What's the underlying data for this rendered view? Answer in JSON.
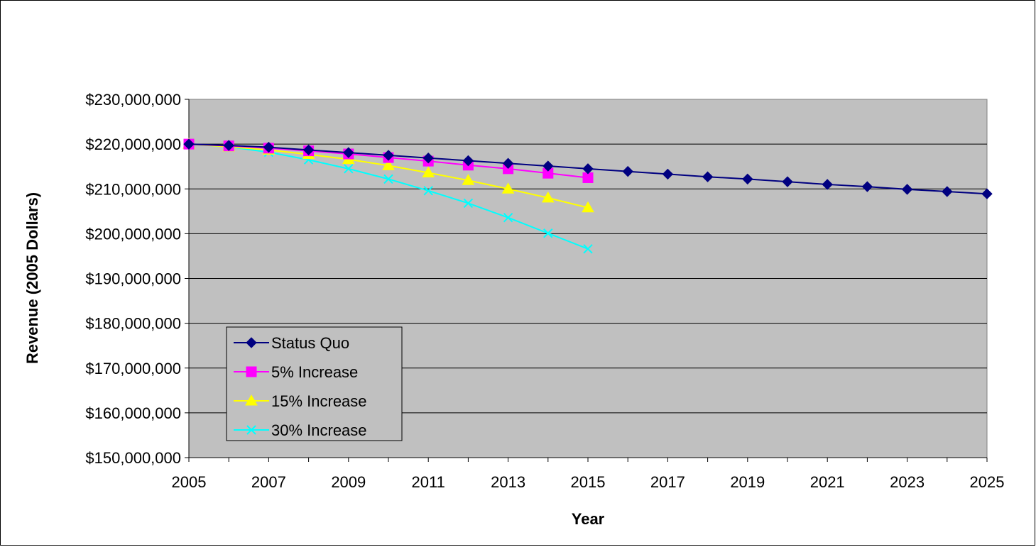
{
  "chart_data": {
    "type": "line",
    "title": "",
    "xlabel": "Year",
    "ylabel": "Revenue (2005 Dollars)",
    "ylim": [
      150000000,
      230000000
    ],
    "xlim": [
      2005,
      2025
    ],
    "y_ticks": [
      "$150,000,000",
      "$160,000,000",
      "$170,000,000",
      "$180,000,000",
      "$190,000,000",
      "$200,000,000",
      "$210,000,000",
      "$220,000,000",
      "$230,000,000"
    ],
    "x_ticks": [
      "2005",
      "2007",
      "2009",
      "2011",
      "2013",
      "2015",
      "2017",
      "2019",
      "2021",
      "2023",
      "2025"
    ],
    "grid": "horizontal",
    "legend_position": "lower-left",
    "plot_background": "#c0c0c0",
    "series": [
      {
        "name": "Status Quo",
        "color": "#000080",
        "marker": "diamond",
        "x": [
          2005,
          2006,
          2007,
          2008,
          2009,
          2010,
          2011,
          2012,
          2013,
          2014,
          2015,
          2016,
          2017,
          2018,
          2019,
          2020,
          2021,
          2022,
          2023,
          2024,
          2025
        ],
        "values": [
          220000000,
          219700000,
          219300000,
          218700000,
          218100000,
          217500000,
          216900000,
          216300000,
          215700000,
          215100000,
          214500000,
          213900000,
          213300000,
          212700000,
          212200000,
          211600000,
          211000000,
          210500000,
          209900000,
          209400000,
          208900000
        ]
      },
      {
        "name": "5% Increase",
        "color": "#ff00ff",
        "marker": "square",
        "x": [
          2005,
          2006,
          2007,
          2008,
          2009,
          2010,
          2011,
          2012,
          2013,
          2014,
          2015
        ],
        "values": [
          220000000,
          219600000,
          219100000,
          218500000,
          217800000,
          217000000,
          216200000,
          215300000,
          214500000,
          213500000,
          212500000
        ]
      },
      {
        "name": "15% Increase",
        "color": "#ffff00",
        "marker": "triangle",
        "x": [
          2005,
          2006,
          2007,
          2008,
          2009,
          2010,
          2011,
          2012,
          2013,
          2014,
          2015
        ],
        "values": [
          220000000,
          219400000,
          218700000,
          217700000,
          216600000,
          215200000,
          213600000,
          211900000,
          210000000,
          208000000,
          205800000
        ]
      },
      {
        "name": "30% Increase",
        "color": "#00ffff",
        "marker": "x",
        "x": [
          2005,
          2006,
          2007,
          2008,
          2009,
          2010,
          2011,
          2012,
          2013,
          2014,
          2015
        ],
        "values": [
          220000000,
          219400000,
          218200000,
          216500000,
          214500000,
          212200000,
          209600000,
          206800000,
          203600000,
          200100000,
          196600000
        ]
      }
    ]
  }
}
